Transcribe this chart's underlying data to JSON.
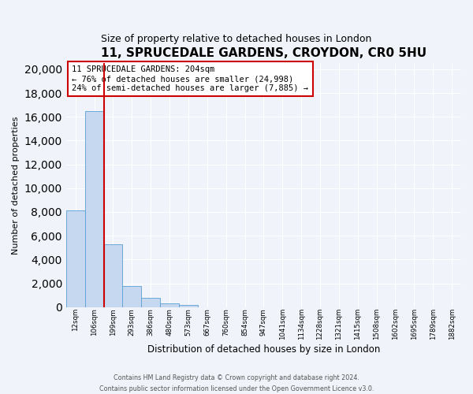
{
  "title": "11, SPRUCEDALE GARDENS, CROYDON, CR0 5HU",
  "subtitle": "Size of property relative to detached houses in London",
  "xlabel": "Distribution of detached houses by size in London",
  "ylabel": "Number of detached properties",
  "bin_labels": [
    "12sqm",
    "106sqm",
    "199sqm",
    "293sqm",
    "386sqm",
    "480sqm",
    "573sqm",
    "667sqm",
    "760sqm",
    "854sqm",
    "947sqm",
    "1041sqm",
    "1134sqm",
    "1228sqm",
    "1321sqm",
    "1415sqm",
    "1508sqm",
    "1602sqm",
    "1695sqm",
    "1789sqm",
    "1882sqm"
  ],
  "bar_heights": [
    8100,
    16500,
    5300,
    1800,
    800,
    300,
    200,
    0,
    0,
    0,
    0,
    0,
    0,
    0,
    0,
    0,
    0,
    0,
    0,
    0,
    0
  ],
  "bar_color": "#c5d8f0",
  "bar_edge_color": "#5a9fd4",
  "vline_x": 2,
  "vline_color": "#cc0000",
  "annotation_title": "11 SPRUCEDALE GARDENS: 204sqm",
  "annotation_line1": "← 76% of detached houses are smaller (24,998)",
  "annotation_line2": "24% of semi-detached houses are larger (7,885) →",
  "annotation_box_color": "#ffffff",
  "annotation_box_edgecolor": "#cc0000",
  "ylim": [
    0,
    20500
  ],
  "yticks": [
    0,
    2000,
    4000,
    6000,
    8000,
    10000,
    12000,
    14000,
    16000,
    18000,
    20000
  ],
  "footer1": "Contains HM Land Registry data © Crown copyright and database right 2024.",
  "footer2": "Contains public sector information licensed under the Open Government Licence v3.0.",
  "bg_color": "#f0f4fa",
  "plot_bg_color": "#f0f4fa"
}
